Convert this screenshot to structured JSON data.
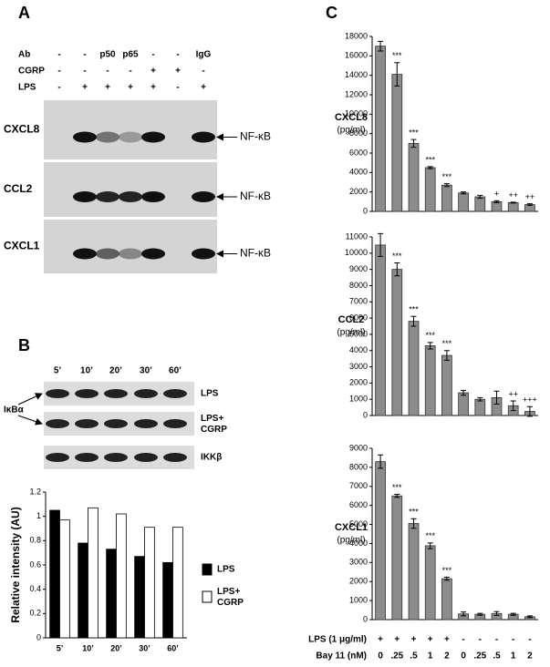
{
  "panel_a": {
    "label": "A",
    "rows": [
      {
        "name": "Ab",
        "cells": [
          "-",
          "-",
          "p50",
          "p65",
          "-",
          "-",
          "IgG"
        ]
      },
      {
        "name": "CGRP",
        "cells": [
          "-",
          "-",
          "-",
          "-",
          "+",
          "+",
          "-"
        ]
      },
      {
        "name": "LPS",
        "cells": [
          "-",
          "+",
          "+",
          "+",
          "+",
          "-",
          "+"
        ]
      }
    ],
    "gels": [
      {
        "name": "CXCL8",
        "band": "NF-κB"
      },
      {
        "name": "CCL2",
        "band": "NF-κB"
      },
      {
        "name": "CXCL1",
        "band": "NF-κB"
      }
    ]
  },
  "panel_b": {
    "label": "B",
    "times": [
      "5’",
      "10’",
      "20’",
      "30’",
      "60’"
    ],
    "blots": [
      "LPS",
      "LPS+ CGRP",
      "IKKβ"
    ],
    "protein": "IκBα"
  },
  "panel_c": {
    "label": "C",
    "conditions": [
      {
        "name": "LPS (1 μg/ml)",
        "cells": [
          "+",
          "+",
          "+",
          "+",
          "+",
          "-",
          "-",
          "-",
          "-",
          "-"
        ]
      },
      {
        "name": "Bay 11 (nM)",
        "cells": [
          "0",
          ".25",
          ".5",
          "1",
          "2",
          "0",
          ".25",
          ".5",
          "1",
          "2"
        ]
      }
    ]
  },
  "chart_data": [
    {
      "type": "grouped-bar",
      "ylabel": "Relative intensity (AU)",
      "categories": [
        "5’",
        "10’",
        "20’",
        "30’",
        "60’"
      ],
      "series": [
        {
          "name": "LPS",
          "color": "#000000",
          "values": [
            1.05,
            0.78,
            0.73,
            0.67,
            0.62
          ]
        },
        {
          "name": "LPS+ CGRP",
          "color": "#ffffff",
          "values": [
            0.97,
            1.07,
            1.02,
            0.91,
            0.91
          ]
        }
      ],
      "ylim": [
        0,
        1.2
      ],
      "yticks": [
        0,
        0.2,
        0.4,
        0.6,
        0.8,
        1,
        1.2
      ],
      "legend": "right"
    },
    {
      "type": "error-bar",
      "ylabel": "CXCL8",
      "yunit": "(pg/ml)",
      "color": "#8c8c8c",
      "values": [
        17000,
        14100,
        7000,
        4500,
        2700,
        1900,
        1500,
        1000,
        900,
        700
      ],
      "errors": [
        500,
        1200,
        400,
        100,
        150,
        100,
        150,
        100,
        50,
        80
      ],
      "annotations": [
        null,
        "***",
        "***",
        "***",
        "***",
        null,
        null,
        "+",
        "++",
        "++"
      ],
      "ylim": [
        0,
        18000
      ],
      "yticks": [
        0,
        2000,
        4000,
        6000,
        8000,
        10000,
        12000,
        14000,
        16000,
        18000
      ]
    },
    {
      "type": "error-bar",
      "ylabel": "CCL2",
      "yunit": "(pg/ml)",
      "color": "#8c8c8c",
      "values": [
        10500,
        9000,
        5800,
        4300,
        3700,
        1400,
        1000,
        1100,
        600,
        250
      ],
      "errors": [
        700,
        400,
        300,
        200,
        300,
        150,
        100,
        400,
        300,
        300
      ],
      "annotations": [
        null,
        "***",
        "***",
        "***",
        "***",
        null,
        null,
        null,
        "++",
        "+++"
      ],
      "ylim": [
        0,
        11000
      ],
      "yticks": [
        0,
        1000,
        2000,
        3000,
        4000,
        5000,
        6000,
        7000,
        8000,
        9000,
        10000,
        11000
      ]
    },
    {
      "type": "error-bar",
      "ylabel": "CXCL1",
      "yunit": "(pg/ml)",
      "color": "#8c8c8c",
      "values": [
        8300,
        6500,
        5050,
        3880,
        2150,
        300,
        280,
        320,
        280,
        150
      ],
      "errors": [
        350,
        80,
        250,
        150,
        80,
        100,
        50,
        100,
        50,
        50
      ],
      "annotations": [
        null,
        "***",
        "***",
        "***",
        "***",
        null,
        null,
        null,
        null,
        null
      ],
      "ylim": [
        0,
        9000
      ],
      "yticks": [
        0,
        1000,
        2000,
        3000,
        4000,
        5000,
        6000,
        7000,
        8000,
        9000
      ]
    }
  ]
}
